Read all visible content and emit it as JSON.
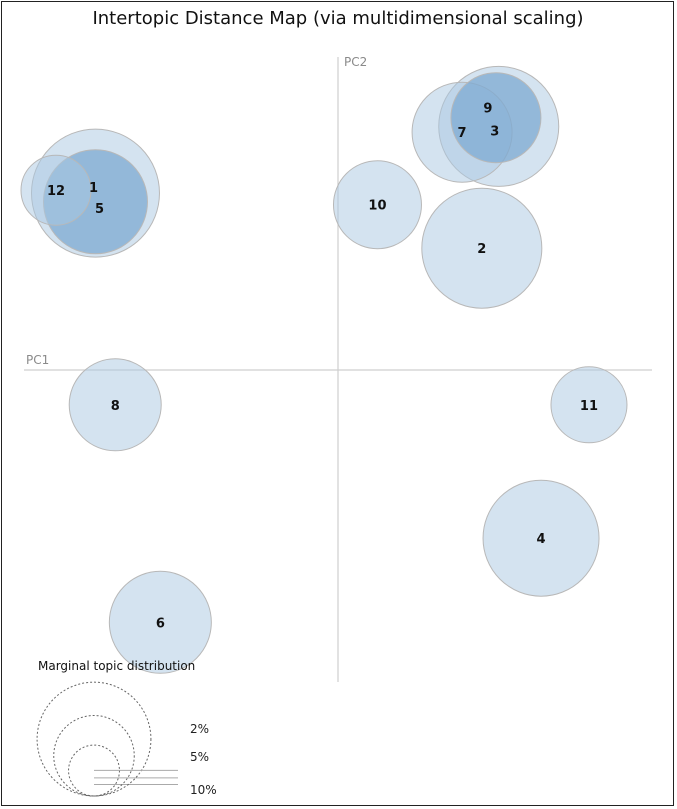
{
  "chart_data": {
    "type": "scatter",
    "title": "Intertopic Distance Map (via multidimensional scaling)",
    "xlabel": "PC1",
    "ylabel": "PC2",
    "xlim": [
      -1,
      1
    ],
    "ylim": [
      -1,
      1
    ],
    "grid": false,
    "bubble_color": "#aac8e2",
    "highlight_color": "#7ea9d1",
    "stroke_color": "#b8b8b8",
    "topics": [
      {
        "label": "1",
        "x": -0.86,
        "y": 0.61,
        "r": 64,
        "highlight": false
      },
      {
        "label": "5",
        "x": -0.86,
        "y": 0.58,
        "r": 52,
        "highlight": true
      },
      {
        "label": "12",
        "x": -1.0,
        "y": 0.62,
        "r": 35,
        "highlight": false
      },
      {
        "label": "7",
        "x": 0.44,
        "y": 0.82,
        "r": 50,
        "highlight": false
      },
      {
        "label": "9",
        "x": 0.56,
        "y": 0.87,
        "r": 45,
        "highlight": true
      },
      {
        "label": "3",
        "x": 0.57,
        "y": 0.84,
        "r": 60,
        "highlight": false
      },
      {
        "label": "10",
        "x": 0.14,
        "y": 0.57,
        "r": 44,
        "highlight": false
      },
      {
        "label": "2",
        "x": 0.51,
        "y": 0.42,
        "r": 60,
        "highlight": false
      },
      {
        "label": "8",
        "x": -0.79,
        "y": -0.12,
        "r": 46,
        "highlight": false
      },
      {
        "label": "11",
        "x": 0.89,
        "y": -0.12,
        "r": 38,
        "highlight": false
      },
      {
        "label": "4",
        "x": 0.72,
        "y": -0.58,
        "r": 58,
        "highlight": false
      },
      {
        "label": "6",
        "x": -0.63,
        "y": -0.87,
        "r": 51,
        "highlight": false
      }
    ]
  },
  "legend": {
    "title": "Marginal topic distribution",
    "items": [
      {
        "label": "2%",
        "value": 2
      },
      {
        "label": "5%",
        "value": 5
      },
      {
        "label": "10%",
        "value": 10
      }
    ]
  }
}
